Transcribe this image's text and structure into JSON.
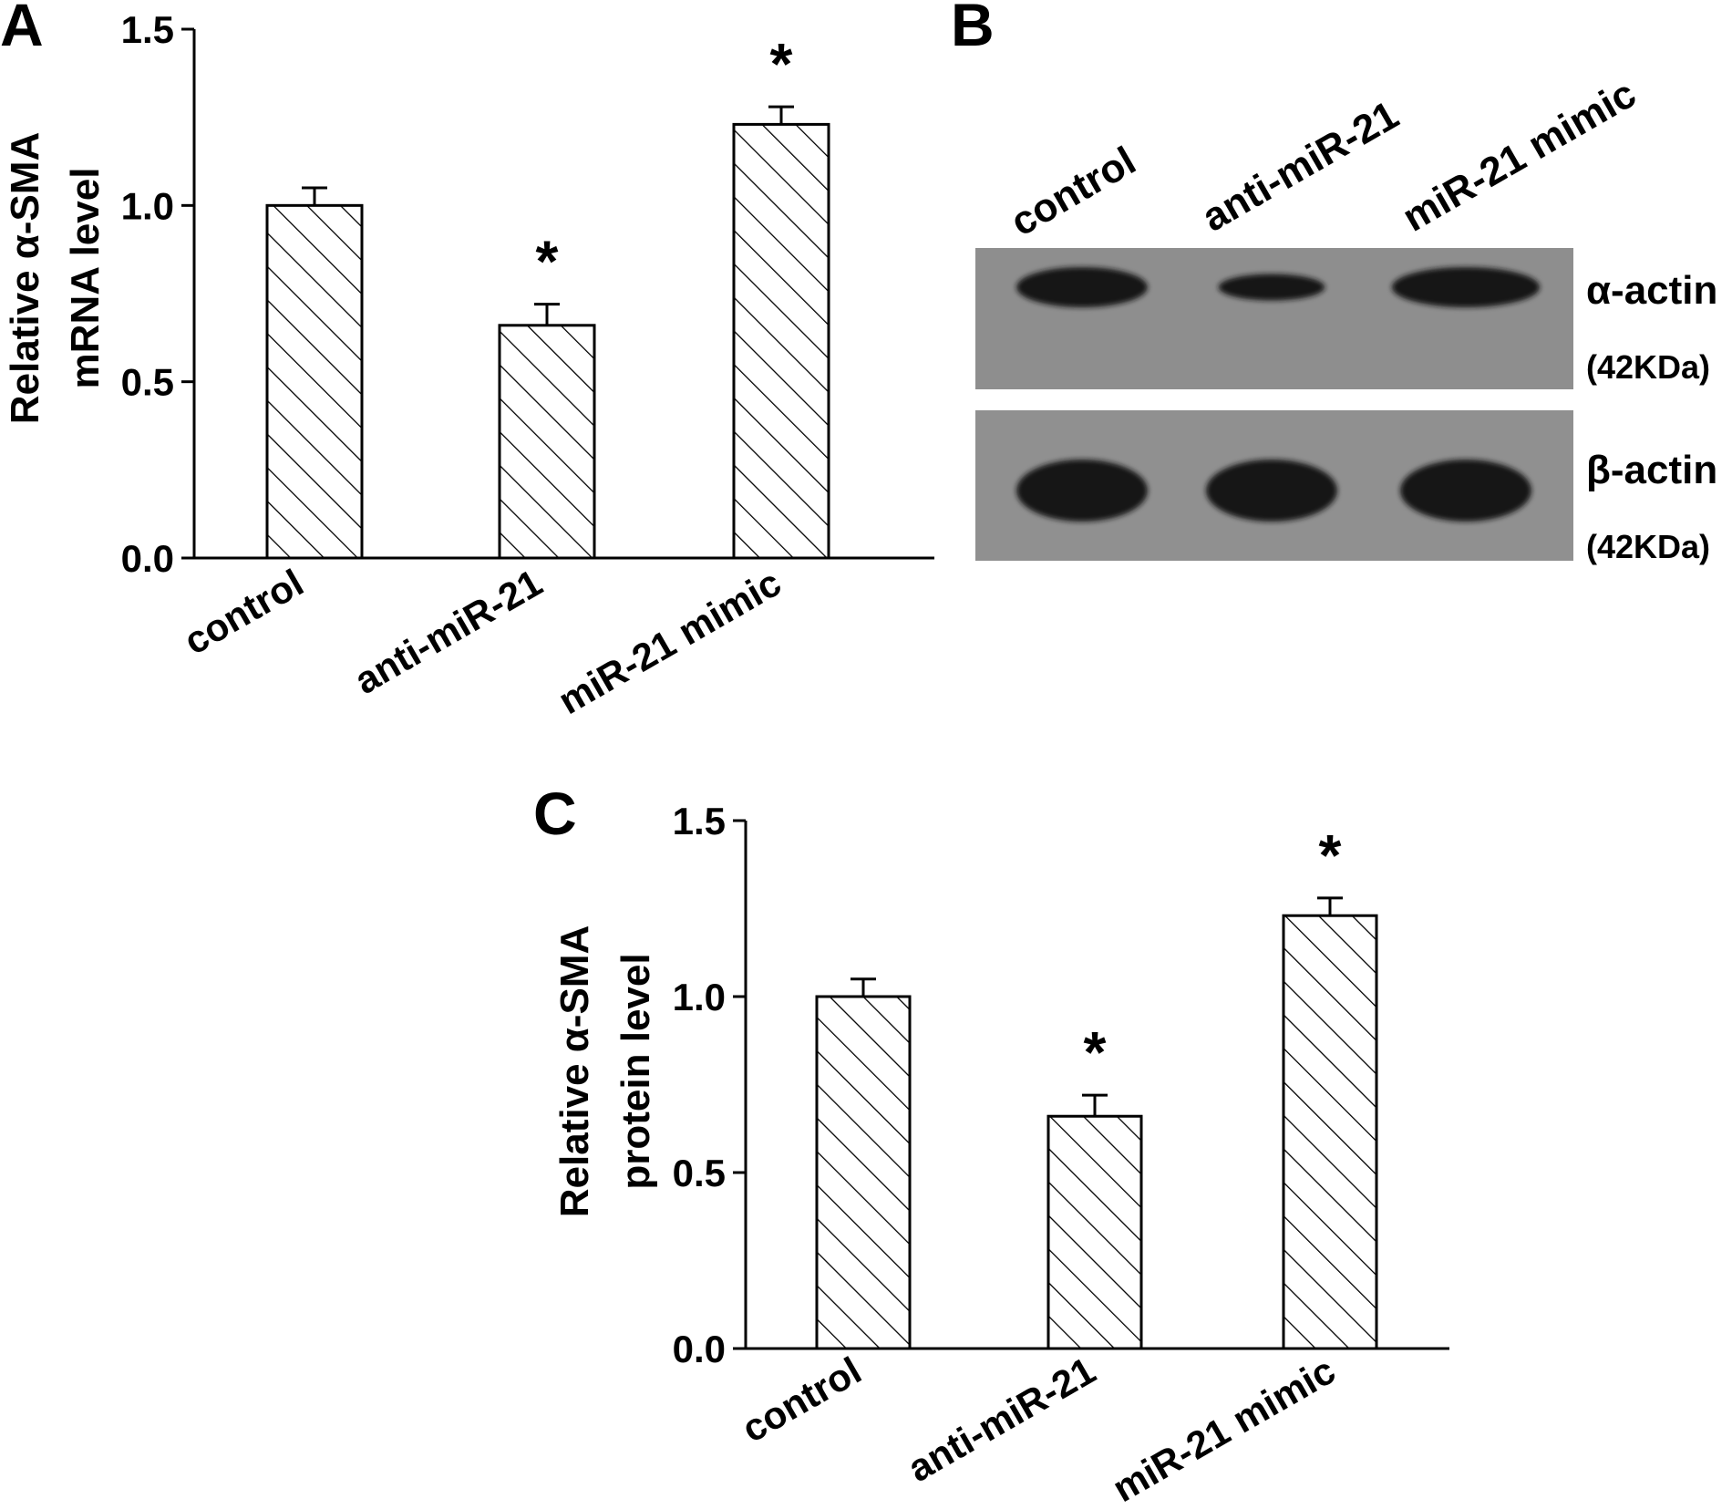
{
  "panels": {
    "a": "A",
    "b": "B",
    "c": "C"
  },
  "colors": {
    "ink": "#000000",
    "background": "#ffffff",
    "blot_background": "#8e8e8e",
    "blot_band": "#161616"
  },
  "blot": {
    "lanes": [
      "control",
      "anti-miR-21",
      "miR-21 mimic"
    ],
    "rows": [
      {
        "name": "α-actin",
        "size": "(42KDa)",
        "band_intensity": [
          1.0,
          0.66,
          1.23
        ]
      },
      {
        "name": "β-actin",
        "size": "(42KDa)",
        "band_intensity": [
          1.0,
          1.0,
          1.0
        ]
      }
    ]
  },
  "chart_data": [
    {
      "type": "bar",
      "panel": "A",
      "categories": [
        "control",
        "anti-miR-21",
        "miR-21 mimic"
      ],
      "values": [
        1.0,
        0.66,
        1.23
      ],
      "errors": [
        0.05,
        0.06,
        0.05
      ],
      "significance": [
        "",
        "*",
        "*"
      ],
      "ylabel_line1": "Relative α-SMA",
      "ylabel_line2": "mRNA level",
      "ylim": [
        0,
        1.5
      ],
      "yticks": [
        0.0,
        0.5,
        1.0,
        1.5
      ],
      "ytick_labels": [
        "0.0",
        "0.5",
        "1.0",
        "1.5"
      ],
      "pattern": "diagonal hatch",
      "grid": false
    },
    {
      "type": "bar",
      "panel": "C",
      "categories": [
        "control",
        "anti-miR-21",
        "miR-21 mimic"
      ],
      "values": [
        1.0,
        0.66,
        1.23
      ],
      "errors": [
        0.05,
        0.06,
        0.05
      ],
      "significance": [
        "",
        "*",
        "*"
      ],
      "ylabel_line1": "Relative α-SMA",
      "ylabel_line2": "protein level",
      "ylim": [
        0,
        1.5
      ],
      "yticks": [
        0.0,
        0.5,
        1.0,
        1.5
      ],
      "ytick_labels": [
        "0.0",
        "0.5",
        "1.0",
        "1.5"
      ],
      "pattern": "diagonal hatch",
      "grid": false
    }
  ]
}
